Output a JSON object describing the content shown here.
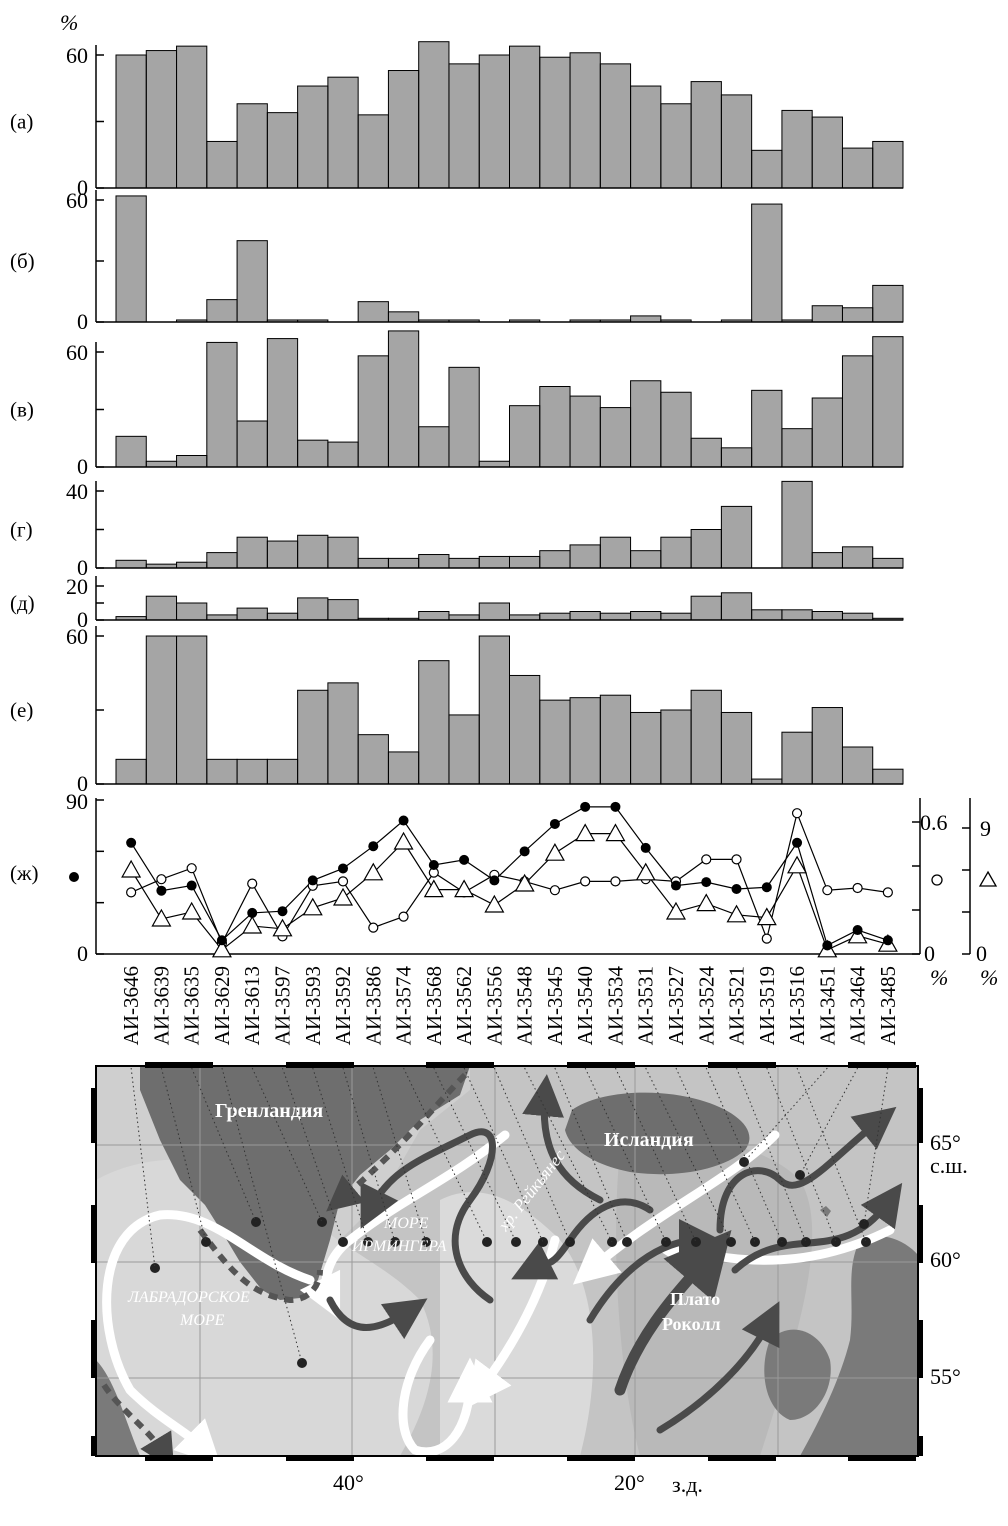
{
  "chart_data": {
    "type": "bar",
    "stations": [
      "АИ-3646",
      "АИ-3639",
      "АИ-3635",
      "АИ-3629",
      "АИ-3613",
      "АИ-3597",
      "АИ-3593",
      "АИ-3592",
      "АИ-3586",
      "АИ-3574",
      "АИ-3568",
      "АИ-3562",
      "АИ-3556",
      "АИ-3548",
      "АИ-3545",
      "АИ-3540",
      "АИ-3534",
      "АИ-3531",
      "АИ-3527",
      "АИ-3524",
      "АИ-3521",
      "АИ-3519",
      "АИ-3516",
      "АИ-3451",
      "АИ-3464",
      "АИ-3485"
    ],
    "y_unit_label": "%",
    "panels": [
      {
        "label": "(а)",
        "ymax": 60,
        "ylim": [
          0,
          68
        ],
        "values": [
          60,
          62,
          64,
          21,
          38,
          34,
          46,
          50,
          33,
          53,
          66,
          56,
          60,
          64,
          59,
          61,
          56,
          46,
          38,
          48,
          42,
          17,
          35,
          32,
          18,
          21
        ]
      },
      {
        "label": "(б)",
        "ymax": 60,
        "ylim": [
          0,
          62
        ],
        "values": [
          62,
          0,
          1,
          11,
          40,
          1,
          1,
          0,
          10,
          5,
          1,
          1,
          0,
          1,
          0,
          1,
          1,
          3,
          1,
          0,
          1,
          58,
          1,
          8,
          7,
          18
        ]
      },
      {
        "label": "(в)",
        "ymax": 60,
        "ylim": [
          0,
          70
        ],
        "values": [
          16,
          3,
          6,
          65,
          24,
          67,
          14,
          13,
          58,
          71,
          21,
          52,
          3,
          32,
          42,
          37,
          31,
          45,
          39,
          15,
          10,
          40,
          20,
          36,
          58,
          68
        ]
      },
      {
        "label": "(г)",
        "ymax": 40,
        "ylim": [
          0,
          45
        ],
        "values": [
          4,
          2,
          3,
          8,
          16,
          14,
          17,
          16,
          5,
          5,
          7,
          5,
          6,
          6,
          9,
          12,
          16,
          9,
          16,
          20,
          32,
          0,
          45,
          8,
          11,
          5
        ]
      },
      {
        "label": "(д)",
        "ymax": 20,
        "ylim": [
          0,
          20
        ],
        "values": [
          2,
          14,
          10,
          3,
          7,
          4,
          13,
          12,
          1,
          1,
          5,
          3,
          10,
          3,
          4,
          5,
          4,
          5,
          4,
          14,
          16,
          6,
          6,
          5,
          4,
          1
        ]
      },
      {
        "label": "(е)",
        "ymax": 60,
        "ylim": [
          0,
          60
        ],
        "values": [
          10,
          60,
          60,
          10,
          10,
          10,
          38,
          41,
          20,
          13,
          50,
          28,
          60,
          44,
          34,
          35,
          36,
          29,
          30,
          38,
          29,
          2,
          21,
          31,
          15,
          6
        ]
      }
    ],
    "line_panel": {
      "label": "(ж)",
      "left_axis": {
        "max": 90,
        "ylim": [
          0,
          90
        ]
      },
      "right_axis_open_circle": {
        "tick": "0.6",
        "unit": "%",
        "ylim": [
          0,
          0.7
        ]
      },
      "right_axis_triangle": {
        "tick": "9",
        "unit": "%",
        "ylim": [
          0,
          11
        ]
      },
      "series": [
        {
          "marker": "filled-circle",
          "values": [
            65,
            37,
            40,
            8,
            24,
            25,
            43,
            50,
            63,
            78,
            52,
            55,
            43,
            60,
            76,
            86,
            86,
            62,
            40,
            42,
            38,
            39,
            65,
            5,
            14,
            8
          ]
        },
        {
          "marker": "open-circle",
          "values": [
            0.28,
            0.34,
            0.39,
            0.05,
            0.32,
            0.08,
            0.31,
            0.33,
            0.12,
            0.17,
            0.37,
            0.28,
            0.36,
            0.33,
            0.29,
            0.33,
            0.33,
            0.34,
            0.33,
            0.43,
            0.43,
            0.07,
            0.64,
            0.29,
            0.3,
            0.28
          ]
        },
        {
          "marker": "triangle",
          "values": [
            6,
            2.5,
            3,
            0.3,
            2,
            1.8,
            3.3,
            4,
            5.8,
            8,
            4.6,
            4.6,
            3.5,
            5,
            7.2,
            8.6,
            8.6,
            5.8,
            3,
            3.6,
            2.8,
            2.6,
            6.3,
            0.3,
            1.3,
            0.7
          ]
        }
      ]
    }
  },
  "map": {
    "labels": {
      "greenland": "Гренландия",
      "iceland": "Исландия",
      "irminger_line1": "МОРЕ",
      "irminger_line2": "ИРМИНГЕРА",
      "reykjanes": "хр. Рейкьянес",
      "labrador_line1": "ЛАБРАДОРСКОЕ",
      "labrador_line2": "МОРЕ",
      "rockall_line1": "Плато",
      "rockall_line2": "Роколл"
    },
    "lat_labels": [
      "65°",
      "с.ш.",
      "60°",
      "55°"
    ],
    "lon_labels": [
      "40°",
      "20°",
      "з.д."
    ],
    "colors": {
      "ocean_deep": "#c9c9c9",
      "ocean_light": "#dadada",
      "land": "#6e6e6e",
      "current_dark": "#4a4a4a",
      "current_light": "#ffffff"
    }
  }
}
